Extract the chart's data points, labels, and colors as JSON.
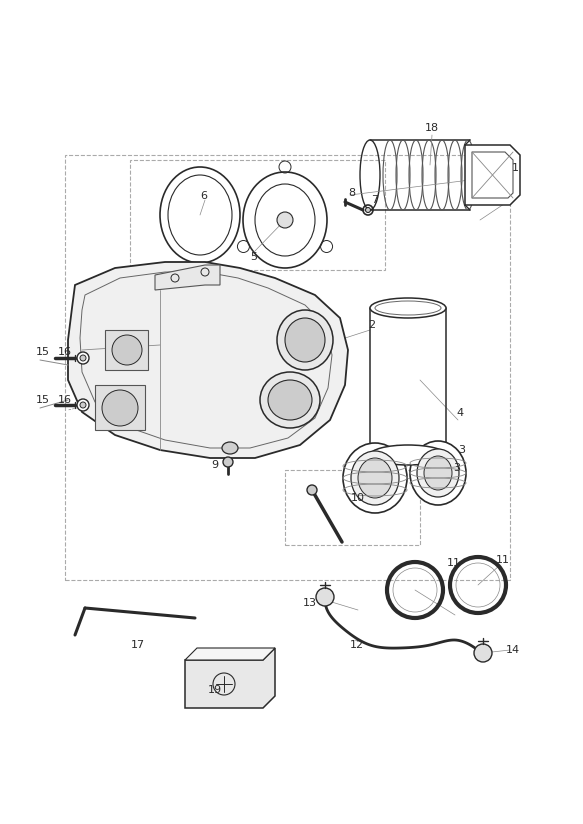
{
  "bg_color": "#ffffff",
  "line_color": "#2a2a2a",
  "dash_color": "#aaaaaa",
  "label_color": "#2a2a2a",
  "figsize": [
    5.83,
    8.24
  ],
  "dpi": 100
}
